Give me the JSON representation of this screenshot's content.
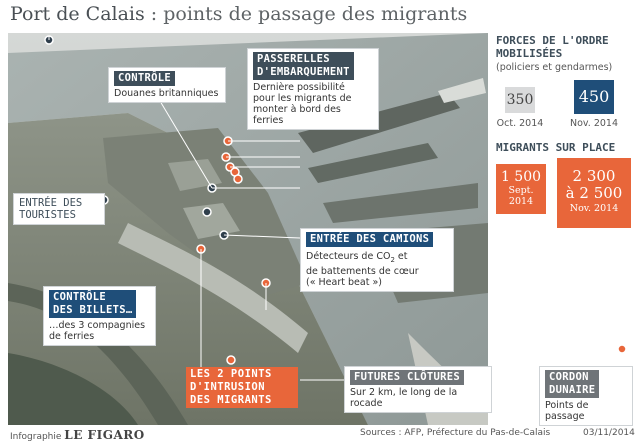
{
  "title": {
    "prefix": "Port de Calais",
    "separator": " : ",
    "main": "points de passage des migrants"
  },
  "labels": {
    "controle_header": "CONTRÔLE",
    "controle_text": "Douanes britanniques",
    "passerelles_header_1": "PASSERELLES",
    "passerelles_header_2": "D'EMBARQUEMENT",
    "passerelles_text_1": "Dernière possibilité",
    "passerelles_text_2": "pour les migrants de",
    "passerelles_text_3": "monter à bord des ferries",
    "entree_touristes_1": "ENTRÉE DES",
    "entree_touristes_2": "TOURISTES",
    "entree_camions_header": "ENTRÉE DES CAMIONS",
    "entree_camions_text_1a": "Détecteurs de CO",
    "entree_camions_text_1sub": "2",
    "entree_camions_text_1b": " et",
    "entree_camions_text_2": "de battements de cœur",
    "entree_camions_text_3": "(« Heart beat »)",
    "controle_billets_header_1": "CONTRÔLE",
    "controle_billets_header_2": "DES BILLETS…",
    "controle_billets_text_1": "…des 3 compagnies",
    "controle_billets_text_2": "de ferries",
    "intrusion_1": "LES 2 POINTS",
    "intrusion_2": "D'INTRUSION",
    "intrusion_3": "DES MIGRANTS",
    "clotures_header": "FUTURES CLÔTURES",
    "clotures_text": "Sur 2 km, le long de la rocade",
    "cordon_header_1": "CORDON",
    "cordon_header_2": "DUNAIRE",
    "cordon_text": "Points de passage"
  },
  "forces": {
    "title_1": "FORCES DE L'ORDRE",
    "title_2": "MOBILISÉES",
    "subtitle": "(policiers et gendarmes)",
    "oct_value": "350",
    "oct_label": "Oct. 2014",
    "nov_value": "450",
    "nov_label": "Nov. 2014"
  },
  "migrants": {
    "title": "MIGRANTS SUR PLACE",
    "sept_value": "1 500",
    "sept_label_1": "Sept.",
    "sept_label_2": "2014",
    "nov_value_1": "2 300",
    "nov_value_2": "à 2 500",
    "nov_label": "Nov. 2014"
  },
  "footer": {
    "infographie": "Infographie",
    "brand": "LE FIGARO",
    "sources": "Sources : AFP, Préfecture du Pas-de-Calais",
    "date": "03/11/2014"
  },
  "colors": {
    "dark_header": "#3e4e5a",
    "blue_header": "#1f4e79",
    "orange": "#e8663a",
    "marker_blue": "#2f3f4c",
    "marker_orange": "#e8663a"
  }
}
